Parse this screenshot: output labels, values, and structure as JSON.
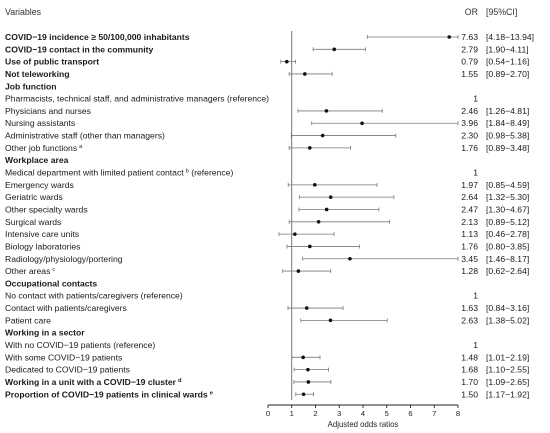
{
  "chart_data": {
    "type": "forest",
    "header": {
      "variables": "Variables",
      "or": "OR",
      "ci": "[95%CI]"
    },
    "xlabel": "Adjusted odds ratios",
    "xlim": [
      0,
      8
    ],
    "xticks": [
      "0",
      "1",
      "2",
      "3",
      "4",
      "5",
      "6",
      "7",
      "8"
    ],
    "reference_line": 1,
    "rows": [
      {
        "label": "COVID−19 incidence ≥ 50/100,000 inhabitants",
        "bold": true,
        "or": 7.63,
        "lo": 4.18,
        "hi": 13.94,
        "or_text": "7.63",
        "ci_text": "[4.18−13.94]"
      },
      {
        "label": "COVID−19 contact in the community",
        "bold": true,
        "or": 2.79,
        "lo": 1.9,
        "hi": 4.11,
        "or_text": "2.79",
        "ci_text": "[1.90−4.11]"
      },
      {
        "label": "Use of public transport",
        "bold": true,
        "or": 0.79,
        "lo": 0.54,
        "hi": 1.16,
        "or_text": "0.79",
        "ci_text": "[0.54−1.16]"
      },
      {
        "label": "Not teleworking",
        "bold": true,
        "or": 1.55,
        "lo": 0.89,
        "hi": 2.7,
        "or_text": "1.55",
        "ci_text": "[0.89−2.70]"
      },
      {
        "label": "Job function",
        "bold": true,
        "header": true
      },
      {
        "label": "Pharmacists, technical staff, and administrative managers (reference)",
        "or_text": "1",
        "ci_text": ""
      },
      {
        "label": "Physicians and nurses",
        "or": 2.46,
        "lo": 1.26,
        "hi": 4.81,
        "or_text": "2.46",
        "ci_text": "[1.26−4.81]"
      },
      {
        "label": "Nursing assistants",
        "or": 3.96,
        "lo": 1.84,
        "hi": 8.49,
        "or_text": "3.96",
        "ci_text": "[1.84−8.49]"
      },
      {
        "label": "Administrative staff (other than managers)",
        "or": 2.3,
        "lo": 0.98,
        "hi": 5.38,
        "or_text": "2.30",
        "ci_text": "[0.98−5.38]"
      },
      {
        "label": "Other job functions",
        "sup": "a",
        "or": 1.76,
        "lo": 0.89,
        "hi": 3.48,
        "or_text": "1.76",
        "ci_text": "[0.89−3.48]"
      },
      {
        "label": "Workplace area",
        "bold": true,
        "header": true
      },
      {
        "label": "Medical department with limited patient contact",
        "sup": "b",
        "suffix": " (reference)",
        "or_text": "1",
        "ci_text": ""
      },
      {
        "label": "Emergency wards",
        "or": 1.97,
        "lo": 0.85,
        "hi": 4.59,
        "or_text": "1.97",
        "ci_text": "[0.85−4.59]"
      },
      {
        "label": "Geriatric wards",
        "or": 2.64,
        "lo": 1.32,
        "hi": 5.3,
        "or_text": "2.64",
        "ci_text": "[1.32−5.30]"
      },
      {
        "label": "Other specialty wards",
        "or": 2.47,
        "lo": 1.3,
        "hi": 4.67,
        "or_text": "2.47",
        "ci_text": "[1.30−4.67]"
      },
      {
        "label": "Surgical wards",
        "or": 2.13,
        "lo": 0.89,
        "hi": 5.12,
        "or_text": "2.13",
        "ci_text": "[0.89−5.12]"
      },
      {
        "label": "Intensive care units",
        "or": 1.13,
        "lo": 0.46,
        "hi": 2.78,
        "or_text": "1.13",
        "ci_text": "[0.46−2.78]"
      },
      {
        "label": "Biology laboratories",
        "or": 1.76,
        "lo": 0.8,
        "hi": 3.85,
        "or_text": "1.76",
        "ci_text": "[0.80−3.85]"
      },
      {
        "label": "Radiology/physiology/portering",
        "or": 3.45,
        "lo": 1.46,
        "hi": 8.17,
        "or_text": "3.45",
        "ci_text": "[1.46−8.17]"
      },
      {
        "label": "Other areas",
        "sup": "c",
        "or": 1.28,
        "lo": 0.62,
        "hi": 2.64,
        "or_text": "1.28",
        "ci_text": "[0.62−2.64]"
      },
      {
        "label": "Occupational contacts",
        "bold": true,
        "header": true
      },
      {
        "label": "No contact with patients/caregivers (reference)",
        "or_text": "1",
        "ci_text": ""
      },
      {
        "label": "Contact with patients/caregivers",
        "or": 1.63,
        "lo": 0.84,
        "hi": 3.16,
        "or_text": "1.63",
        "ci_text": "[0.84−3.16]"
      },
      {
        "label": "Patient care",
        "or": 2.63,
        "lo": 1.38,
        "hi": 5.02,
        "or_text": "2.63",
        "ci_text": "[1.38−5.02]"
      },
      {
        "label": "Working in a sector",
        "bold": true,
        "header": true
      },
      {
        "label": "With no COVID−19 patients (reference)",
        "or_text": "1",
        "ci_text": ""
      },
      {
        "label": "With some COVID−19 patients",
        "or": 1.48,
        "lo": 1.01,
        "hi": 2.19,
        "or_text": "1.48",
        "ci_text": "[1.01−2.19]"
      },
      {
        "label": "Dedicated to COVID−19 patients",
        "or": 1.68,
        "lo": 1.1,
        "hi": 2.55,
        "or_text": "1.68",
        "ci_text": "[1.10−2.55]"
      },
      {
        "label": "Working in a unit with a COVID−19 cluster",
        "sup": "d",
        "bold": true,
        "or": 1.7,
        "lo": 1.09,
        "hi": 2.65,
        "or_text": "1.70",
        "ci_text": "[1.09−2.65]"
      },
      {
        "label": "Proportion of COVID−19 patients in clinical wards",
        "sup": "e",
        "bold": true,
        "or": 1.5,
        "lo": 1.17,
        "hi": 1.92,
        "or_text": "1.50",
        "ci_text": "[1.17−1.92]"
      }
    ]
  }
}
